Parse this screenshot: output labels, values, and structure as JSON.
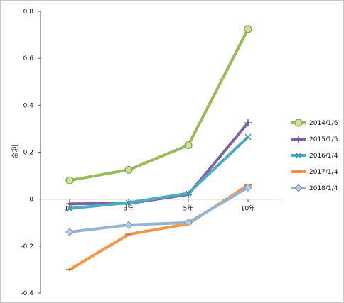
{
  "chart_data": {
    "type": "line",
    "title": "",
    "xlabel": "",
    "ylabel": "金利",
    "categories": [
      "1年",
      "3年",
      "5年",
      "10年"
    ],
    "ylim": [
      -0.4,
      0.8
    ],
    "yticks": [
      "0.8",
      "0.6",
      "0.4",
      "0.2",
      "0",
      "-0.2",
      "-0.4"
    ],
    "ytick_values": [
      0.8,
      0.6,
      0.4,
      0.2,
      0,
      -0.2,
      -0.4
    ],
    "grid": false,
    "legend_position": "right",
    "series": [
      {
        "name": "2014/1/6",
        "color": "#9bbb59",
        "marker": "circle",
        "values": [
          0.08,
          0.125,
          0.23,
          0.725
        ]
      },
      {
        "name": "2015/1/5",
        "color": "#8064a2",
        "marker": "plus",
        "values": [
          -0.02,
          -0.018,
          0.02,
          0.325
        ]
      },
      {
        "name": "2016/1/4",
        "color": "#4bacc6",
        "marker": "x",
        "values": [
          -0.04,
          -0.015,
          0.025,
          0.265
        ]
      },
      {
        "name": "2017/1/4",
        "color": "#f79646",
        "marker": "dash",
        "values": [
          -0.3,
          -0.15,
          -0.105,
          0.06
        ]
      },
      {
        "name": "2018/1/4",
        "color": "#95b3d7",
        "marker": "diamond",
        "values": [
          -0.14,
          -0.11,
          -0.1,
          0.05
        ]
      }
    ]
  }
}
